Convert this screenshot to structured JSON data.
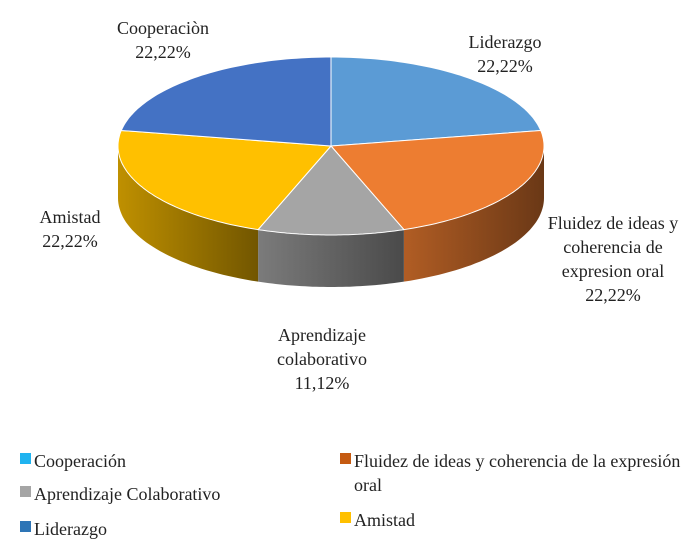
{
  "chart_data": {
    "type": "pie3d",
    "categories": [
      "Liderazgo",
      "Fluidez de ideas y coherencia de expresion oral",
      "Aprendizaje colaborativo",
      "Amistad",
      "Cooperaciòn"
    ],
    "values": [
      22.22,
      22.22,
      11.12,
      22.22,
      22.22
    ],
    "value_labels": [
      "22,22%",
      "22,22%",
      "11,12%",
      "22,22%",
      "22,22%"
    ],
    "colors": [
      "#5b9bd5",
      "#ed7d31",
      "#a5a5a5",
      "#ffc000",
      "#4472c4"
    ],
    "legend": [
      {
        "name": "Cooperación",
        "color": "#1fb3f0"
      },
      {
        "name": "Fluidez de ideas y coherencia de la expresión oral",
        "color": "#c55a11"
      },
      {
        "name": "Aprendizaje Colaborativo",
        "color": "#a5a5a5"
      },
      {
        "name": "Amistad",
        "color": "#ffc000"
      },
      {
        "name": "Liderazgo",
        "color": "#2e75b6"
      }
    ]
  }
}
